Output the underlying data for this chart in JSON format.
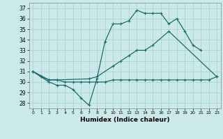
{
  "xlabel": "Humidex (Indice chaleur)",
  "bg_color": "#cce9e9",
  "grid_color": "#aad4d4",
  "line_color": "#1a6b6b",
  "xlim": [
    -0.5,
    23.5
  ],
  "ylim": [
    27.5,
    37.5
  ],
  "yticks": [
    28,
    29,
    30,
    31,
    32,
    33,
    34,
    35,
    36,
    37
  ],
  "xticks": [
    0,
    1,
    2,
    3,
    4,
    5,
    6,
    7,
    8,
    9,
    10,
    11,
    12,
    13,
    14,
    15,
    16,
    17,
    18,
    19,
    20,
    21,
    22,
    23
  ],
  "series": [
    {
      "x": [
        0,
        1,
        2,
        3,
        4,
        5,
        6,
        7,
        8,
        9,
        10,
        11,
        12,
        13,
        14,
        15,
        16,
        17,
        18,
        19,
        20,
        21
      ],
      "y": [
        31.0,
        30.5,
        30.0,
        29.7,
        29.7,
        29.3,
        28.5,
        27.8,
        30.3,
        33.8,
        35.5,
        35.5,
        35.8,
        36.8,
        36.5,
        36.5,
        36.5,
        35.5,
        36.0,
        34.8,
        33.5,
        33.0
      ]
    },
    {
      "x": [
        0,
        2,
        3,
        7,
        8,
        10,
        11,
        12,
        13,
        14,
        15,
        17,
        23
      ],
      "y": [
        31.0,
        30.2,
        30.2,
        30.3,
        30.5,
        31.5,
        32.0,
        32.5,
        33.0,
        33.0,
        33.5,
        34.8,
        30.5
      ]
    },
    {
      "x": [
        0,
        1,
        2,
        3,
        4,
        5,
        6,
        7,
        8,
        9,
        10,
        11,
        12,
        13,
        14,
        15,
        16,
        17,
        18,
        19,
        20,
        21,
        22,
        23
      ],
      "y": [
        31.0,
        30.5,
        30.2,
        30.2,
        30.0,
        30.0,
        30.0,
        30.0,
        30.0,
        30.0,
        30.2,
        30.2,
        30.2,
        30.2,
        30.2,
        30.2,
        30.2,
        30.2,
        30.2,
        30.2,
        30.2,
        30.2,
        30.2,
        30.5
      ]
    }
  ]
}
